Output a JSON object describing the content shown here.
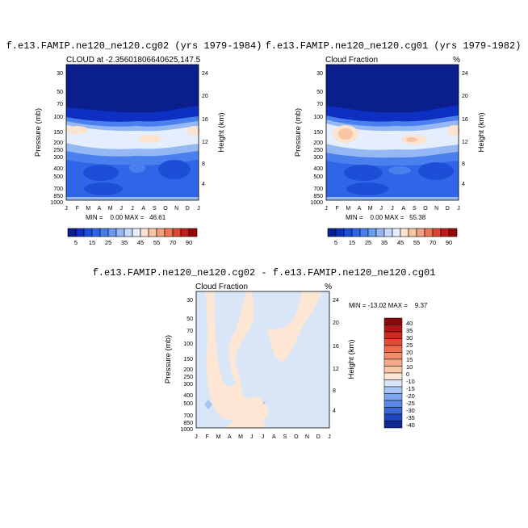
{
  "chart_data": [
    {
      "type": "heatmap",
      "title": "f.e13.FAMIP.ne120_ne120.cg02 (yrs 1979-1984)",
      "subtitle_left": "CLOUD at -2.35601806640625,147.5",
      "subtitle_right": "",
      "ylabel": "Pressure (mb)",
      "y2label": "Height (km)",
      "x_ticks": [
        "J",
        "F",
        "M",
        "A",
        "M",
        "J",
        "J",
        "A",
        "S",
        "O",
        "N",
        "D",
        "J"
      ],
      "y_ticks": [
        "30",
        "50",
        "70",
        "100",
        "150",
        "200",
        "250",
        "300",
        "400",
        "500",
        "700",
        "850",
        "1000"
      ],
      "y2_ticks": [
        "24",
        "20",
        "16",
        "12",
        "8",
        "4"
      ],
      "stats": "MIN =    0.00 MAX =   46.61",
      "min": 0.0,
      "max": 46.61,
      "colorbar_labels": [
        "5",
        "15",
        "25",
        "35",
        "45",
        "55",
        "70",
        "90"
      ],
      "colorbar_colors": [
        "#0a1f8c",
        "#0d2fc2",
        "#1c4ed8",
        "#2f66e8",
        "#4a80ee",
        "#6a9af0",
        "#95b8f4",
        "#c4d9fa",
        "#e4eefc",
        "#fbe3cf",
        "#f7c4a6",
        "#f3a07e",
        "#ec7658",
        "#dc4634",
        "#c01e18",
        "#960a0a"
      ]
    },
    {
      "type": "heatmap",
      "title": "f.e13.FAMIP.ne120_ne120.cg01 (yrs 1979-1982)",
      "subtitle_left": "Cloud Fraction",
      "subtitle_right": "%",
      "ylabel": "Pressure (mb)",
      "y2label": "Height (km)",
      "x_ticks": [
        "J",
        "F",
        "M",
        "A",
        "M",
        "J",
        "J",
        "A",
        "S",
        "O",
        "N",
        "D",
        "J"
      ],
      "y_ticks": [
        "30",
        "50",
        "70",
        "100",
        "150",
        "200",
        "250",
        "300",
        "400",
        "500",
        "700",
        "850",
        "1000"
      ],
      "y2_ticks": [
        "24",
        "20",
        "16",
        "12",
        "8",
        "4"
      ],
      "stats": "MIN =    0.00 MAX =   55.38",
      "min": 0.0,
      "max": 55.38,
      "colorbar_labels": [
        "5",
        "15",
        "25",
        "35",
        "45",
        "55",
        "70",
        "90"
      ],
      "colorbar_colors": [
        "#0a1f8c",
        "#0d2fc2",
        "#1c4ed8",
        "#2f66e8",
        "#4a80ee",
        "#6a9af0",
        "#95b8f4",
        "#c4d9fa",
        "#e4eefc",
        "#fbe3cf",
        "#f7c4a6",
        "#f3a07e",
        "#ec7658",
        "#dc4634",
        "#c01e18",
        "#960a0a"
      ]
    },
    {
      "type": "heatmap",
      "title": "f.e13.FAMIP.ne120_ne120.cg02 - f.e13.FAMIP.ne120_ne120.cg01",
      "subtitle_left": "Cloud Fraction",
      "subtitle_right": "%",
      "ylabel": "Pressure (mb)",
      "y2label": "Height (km)",
      "x_ticks": [
        "J",
        "F",
        "M",
        "A",
        "M",
        "J",
        "J",
        "A",
        "S",
        "O",
        "N",
        "D",
        "J"
      ],
      "y_ticks": [
        "30",
        "50",
        "70",
        "100",
        "150",
        "200",
        "250",
        "300",
        "400",
        "500",
        "700",
        "850",
        "1000"
      ],
      "y2_ticks": [
        "24",
        "20",
        "16",
        "12",
        "8",
        "4"
      ],
      "stats": "MIN = -13.02 MAX =    9.37",
      "min": -13.02,
      "max": 9.37,
      "colorbar_labels": [
        "40",
        "35",
        "30",
        "25",
        "20",
        "15",
        "10",
        "0",
        "-10",
        "-15",
        "-20",
        "-25",
        "-30",
        "-35",
        "-40"
      ],
      "colorbar_colors": [
        "#8b0a0a",
        "#b01616",
        "#cc2a20",
        "#e24b36",
        "#ee6a50",
        "#f38a6c",
        "#f6a888",
        "#f9c6a8",
        "#fde6d4",
        "#d8e6f8",
        "#a9c4f2",
        "#7ea4ec",
        "#5a86e4",
        "#3a66d6",
        "#1e44c0",
        "#0e2896"
      ]
    }
  ]
}
